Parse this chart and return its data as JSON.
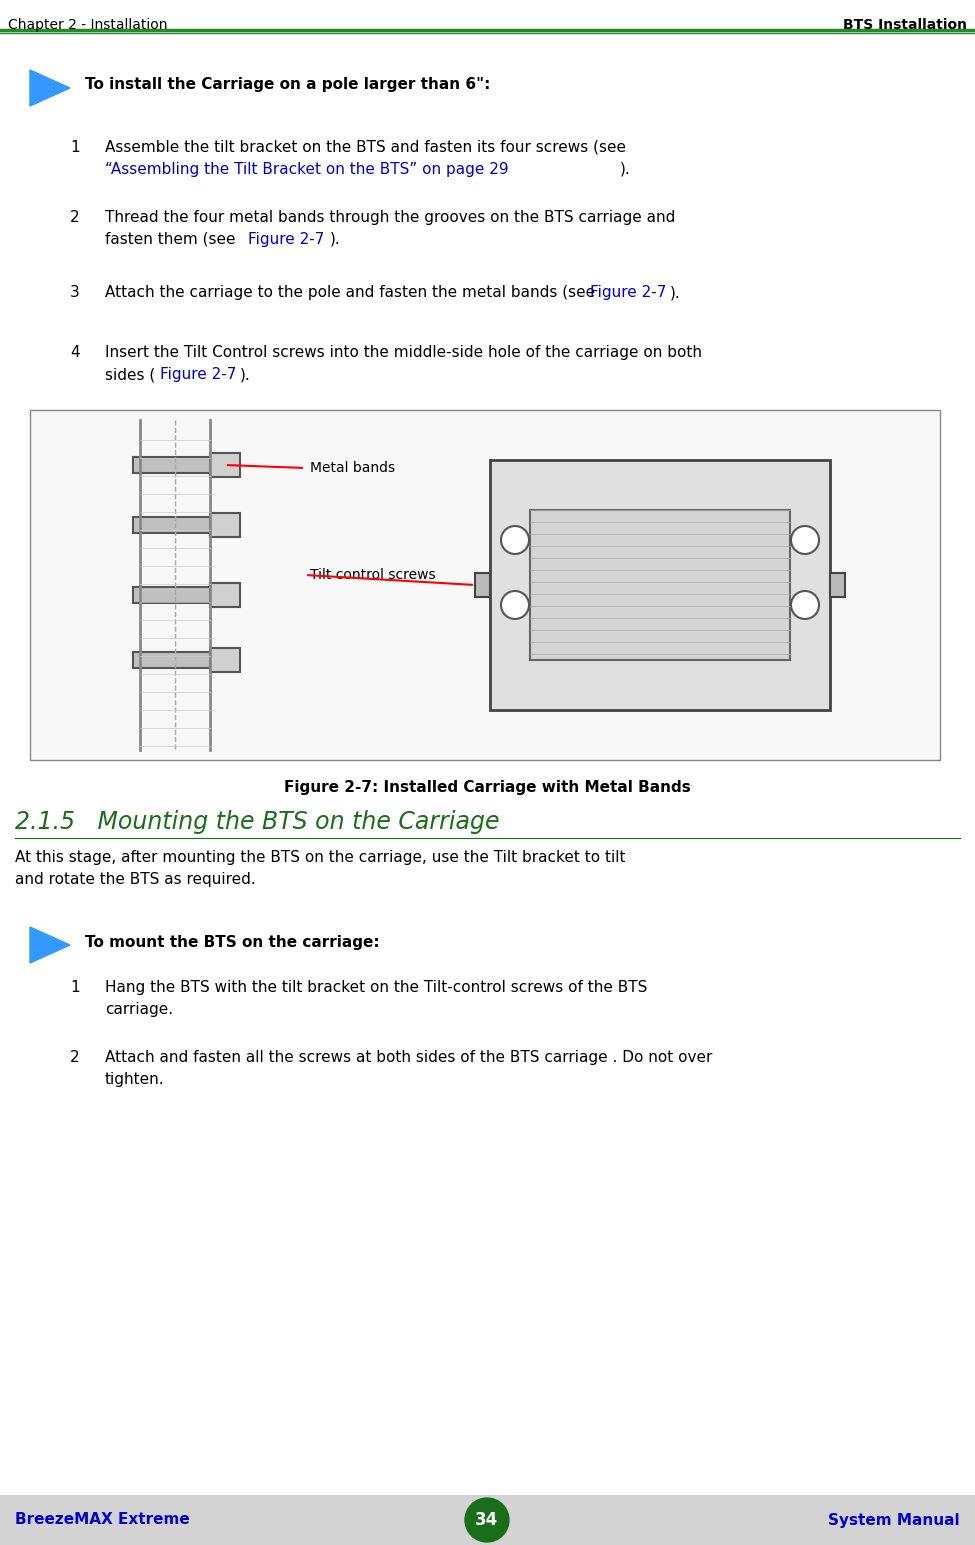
{
  "bg_color": "#ffffff",
  "header_left": "Chapter 2 - Installation",
  "header_right": "BTS Installation",
  "header_line_color": "#228B22",
  "footer_left": "BreezeMAX Extreme",
  "footer_center": "34",
  "footer_right": "System Manual",
  "footer_bg": "#d3d3d3",
  "footer_text_color": "#0000cc",
  "footer_circle_color": "#1a6e1a",
  "section_heading_bold": "To install the Carriage on a pole larger than 6\":",
  "items_section1": [
    {
      "num": "1",
      "black": "Assemble the tilt bracket on the BTS and fasten its four screws (see\n",
      "blue": "“Assembling the Tilt Bracket on the BTS” on page 29",
      "black2": ")."
    },
    {
      "num": "2",
      "black": "Thread the four metal bands through the grooves on the BTS carriage and\nfasten them (see ",
      "blue": "Figure 2-7",
      "black2": ")."
    },
    {
      "num": "3",
      "black": "Attach the carriage to the pole and fasten the metal bands (see ",
      "blue": "Figure 2-7",
      "black2": ")."
    },
    {
      "num": "4",
      "black": "Insert the Tilt Control screws into the middle-side hole of the carriage on both\nsides (",
      "blue": "Figure 2-7",
      "black2": ")."
    }
  ],
  "figure_caption": "Figure 2-7: Installed Carriage with Metal Bands",
  "label_metal_bands": "Metal bands",
  "label_tilt_screws": "Tilt control screws",
  "section_title": "2.1.5   Mounting the BTS on the Carriage",
  "section_title_color": "#1a6e1a",
  "section_body": "At this stage, after mounting the BTS on the carriage, use the Tilt bracket to tilt\nand rotate the BTS as required.",
  "section_heading2_bold": "To mount the BTS on the carriage:",
  "items_section2": [
    {
      "num": "1",
      "black": "Hang the BTS with the tilt bracket on the Tilt-control screws of the BTS\ncarriage."
    },
    {
      "num": "2",
      "black": "Attach and fasten all the screws at both sides of the BTS carriage . Do not over\ntighten."
    }
  ],
  "text_color": "#000000",
  "blue_color": "#0000cc",
  "link_color": "#0000cc",
  "arrow_color": "#3399ff"
}
